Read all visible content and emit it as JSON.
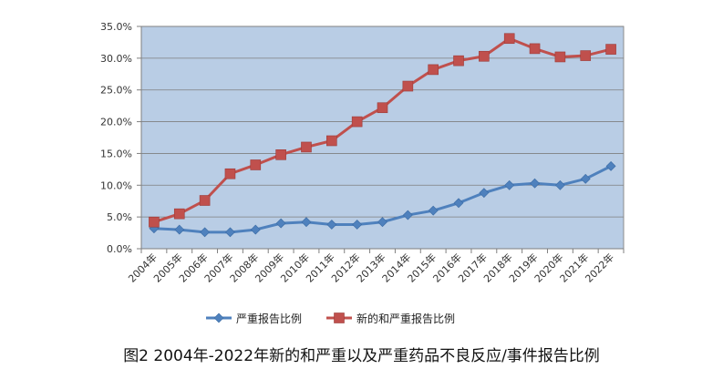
{
  "caption": "图2 2004年-2022年新的和严重以及严重药品不良反应/事件报告比例",
  "chart_data": {
    "type": "line",
    "categories": [
      "2004年",
      "2005年",
      "2006年",
      "2007年",
      "2008年",
      "2009年",
      "2010年",
      "2011年",
      "2012年",
      "2013年",
      "2014年",
      "2015年",
      "2016年",
      "2017年",
      "2018年",
      "2019年",
      "2020年",
      "2021年",
      "2022年"
    ],
    "ylim": [
      0,
      35
    ],
    "ytick_step": 5,
    "ytick_format": "percent-1dp",
    "grid": true,
    "legend_position": "bottom",
    "plot_background": "#b9cde5",
    "series": [
      {
        "name": "严重报告比例",
        "marker": "diamond",
        "color": "#4f81bd",
        "values": [
          3.2,
          3.0,
          2.6,
          2.6,
          3.0,
          4.0,
          4.2,
          3.8,
          3.8,
          4.2,
          5.3,
          6.0,
          7.2,
          8.8,
          10.0,
          10.3,
          10.0,
          11.0,
          13.0
        ]
      },
      {
        "name": "新的和严重报告比例",
        "marker": "square",
        "color": "#c0504d",
        "values": [
          4.2,
          5.5,
          7.6,
          11.8,
          13.2,
          14.8,
          16.0,
          17.0,
          20.0,
          22.2,
          25.6,
          28.2,
          29.6,
          30.3,
          33.1,
          31.5,
          30.2,
          30.4,
          31.4
        ]
      }
    ]
  }
}
